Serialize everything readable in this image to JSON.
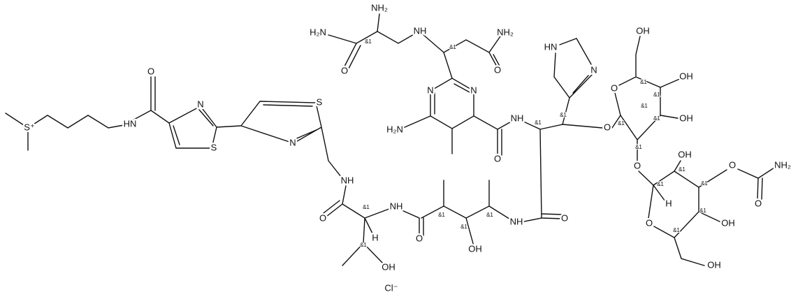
{
  "atoms": [
    "S⁺",
    "HN",
    "O",
    "N",
    "S",
    "S",
    "N",
    "NH",
    "O",
    "NH",
    "O",
    "H",
    "OH",
    "OH",
    "NH",
    "O",
    "NH",
    "O",
    "N",
    "N",
    "H₂N",
    "O",
    "O",
    "OH",
    "OH",
    "OH",
    "O",
    "OH",
    "O",
    "NH₂",
    "O",
    "O",
    "H",
    "OH",
    "OH",
    "HN",
    "N",
    "H₂N",
    "O",
    "NH₂",
    "NH",
    "NH₂",
    "O",
    "Cl⁻"
  ],
  "stereo": [
    "&1",
    "&1",
    "&1",
    "&1",
    "&1",
    "&1",
    "&1",
    "&1",
    "&1",
    "&1",
    "&1",
    "&1",
    "&1",
    "&1",
    "&1",
    "&1",
    "&1",
    "&1",
    "&1",
    "&1"
  ]
}
